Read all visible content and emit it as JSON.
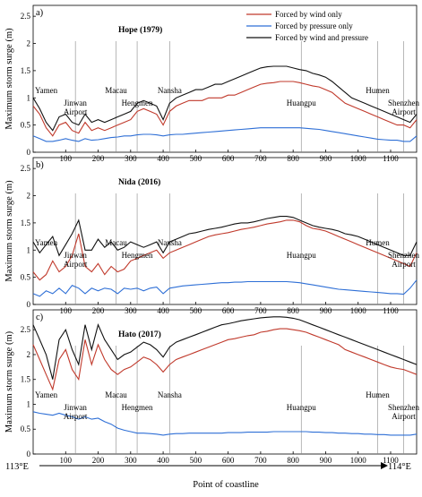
{
  "figure": {
    "ylabel": "Maximum storm surge (m)",
    "xlabel": "Point of coastline",
    "x_start_label": "113°E",
    "x_end_label": "114°E",
    "legend": [
      {
        "label": "Forced by wind only",
        "color": "#c0392b"
      },
      {
        "label": "Forced by pressure only",
        "color": "#2e6fd6"
      },
      {
        "label": "Forced by wind and pressure",
        "color": "#111111"
      }
    ]
  },
  "chart_data": [
    {
      "type": "line",
      "panel": "a)",
      "title": "Hope (1979)",
      "ylabel": "Maximum storm surge (m)",
      "xlim": [
        0,
        1180
      ],
      "ylim": [
        0,
        2.7
      ],
      "yticks": [
        0,
        0.5,
        1,
        1.5,
        2,
        2.5
      ],
      "xticks": [
        100,
        200,
        300,
        400,
        500,
        600,
        700,
        800,
        900,
        1000,
        1100
      ],
      "x": [
        0,
        20,
        40,
        60,
        80,
        100,
        120,
        140,
        160,
        180,
        200,
        220,
        240,
        260,
        280,
        300,
        320,
        340,
        360,
        380,
        400,
        420,
        440,
        460,
        480,
        500,
        520,
        540,
        560,
        580,
        600,
        620,
        640,
        660,
        680,
        700,
        720,
        740,
        760,
        780,
        800,
        820,
        840,
        860,
        880,
        900,
        920,
        940,
        960,
        980,
        1000,
        1020,
        1040,
        1060,
        1080,
        1100,
        1120,
        1140,
        1160,
        1180
      ],
      "series": [
        {
          "name": "Forced by wind only",
          "color": "#c0392b",
          "values": [
            0.85,
            0.7,
            0.45,
            0.3,
            0.5,
            0.55,
            0.4,
            0.35,
            0.55,
            0.4,
            0.45,
            0.4,
            0.45,
            0.5,
            0.55,
            0.6,
            0.75,
            0.8,
            0.75,
            0.7,
            0.5,
            0.75,
            0.85,
            0.9,
            0.95,
            0.95,
            0.95,
            1.0,
            1.0,
            1.0,
            1.05,
            1.05,
            1.1,
            1.15,
            1.2,
            1.25,
            1.27,
            1.28,
            1.3,
            1.3,
            1.3,
            1.28,
            1.25,
            1.22,
            1.2,
            1.15,
            1.1,
            1.0,
            0.9,
            0.85,
            0.8,
            0.75,
            0.7,
            0.65,
            0.6,
            0.55,
            0.5,
            0.5,
            0.45,
            0.6
          ]
        },
        {
          "name": "Forced by pressure only",
          "color": "#2e6fd6",
          "values": [
            0.3,
            0.25,
            0.2,
            0.2,
            0.22,
            0.25,
            0.22,
            0.2,
            0.25,
            0.22,
            0.23,
            0.25,
            0.27,
            0.28,
            0.3,
            0.3,
            0.32,
            0.33,
            0.33,
            0.32,
            0.3,
            0.32,
            0.33,
            0.33,
            0.34,
            0.35,
            0.36,
            0.37,
            0.38,
            0.39,
            0.4,
            0.41,
            0.42,
            0.43,
            0.44,
            0.45,
            0.45,
            0.45,
            0.45,
            0.45,
            0.45,
            0.45,
            0.44,
            0.43,
            0.42,
            0.4,
            0.38,
            0.36,
            0.34,
            0.32,
            0.3,
            0.28,
            0.26,
            0.24,
            0.23,
            0.22,
            0.22,
            0.2,
            0.2,
            0.3
          ]
        },
        {
          "name": "Forced by wind and pressure",
          "color": "#111111",
          "values": [
            1.0,
            0.8,
            0.55,
            0.4,
            0.65,
            0.7,
            0.55,
            0.5,
            0.7,
            0.55,
            0.6,
            0.55,
            0.6,
            0.65,
            0.7,
            0.75,
            0.9,
            0.95,
            0.9,
            0.85,
            0.6,
            0.9,
            1.0,
            1.05,
            1.1,
            1.15,
            1.15,
            1.2,
            1.25,
            1.25,
            1.3,
            1.35,
            1.4,
            1.45,
            1.5,
            1.55,
            1.57,
            1.58,
            1.58,
            1.58,
            1.55,
            1.52,
            1.5,
            1.45,
            1.42,
            1.38,
            1.3,
            1.2,
            1.1,
            1.0,
            0.95,
            0.9,
            0.85,
            0.8,
            0.75,
            0.7,
            0.65,
            0.6,
            0.55,
            0.7
          ]
        }
      ],
      "annotations": [
        {
          "text": "Yamen",
          "x": 0
        },
        {
          "text": "Jinwan Airport",
          "x": 130
        },
        {
          "text": "Macau",
          "x": 255
        },
        {
          "text": "Hengmen",
          "x": 320
        },
        {
          "text": "Nansha",
          "x": 420
        },
        {
          "text": "Huangpu",
          "x": 825
        },
        {
          "text": "Humen",
          "x": 1060
        },
        {
          "text": "Shenzhen Airport",
          "x": 1140
        }
      ]
    },
    {
      "type": "line",
      "panel": "b)",
      "title": "Nida (2016)",
      "ylabel": "Maximum storm surge (m)",
      "xlim": [
        0,
        1180
      ],
      "ylim": [
        0,
        2.7
      ],
      "yticks": [
        0,
        0.5,
        1,
        1.5,
        2,
        2.5
      ],
      "xticks": [
        100,
        200,
        300,
        400,
        500,
        600,
        700,
        800,
        900,
        1000,
        1100
      ],
      "x": [
        0,
        20,
        40,
        60,
        80,
        100,
        120,
        140,
        160,
        180,
        200,
        220,
        240,
        260,
        280,
        300,
        320,
        340,
        360,
        380,
        400,
        420,
        440,
        460,
        480,
        500,
        520,
        540,
        560,
        580,
        600,
        620,
        640,
        660,
        680,
        700,
        720,
        740,
        760,
        780,
        800,
        820,
        840,
        860,
        880,
        900,
        920,
        940,
        960,
        980,
        1000,
        1020,
        1040,
        1060,
        1080,
        1100,
        1120,
        1140,
        1160,
        1180
      ],
      "series": [
        {
          "name": "Forced by wind only",
          "color": "#c0392b",
          "values": [
            0.6,
            0.45,
            0.55,
            0.8,
            0.6,
            0.7,
            0.9,
            1.3,
            0.7,
            0.6,
            0.75,
            0.55,
            0.7,
            0.6,
            0.65,
            0.8,
            0.85,
            0.9,
            0.95,
            1.0,
            0.85,
            0.95,
            1.0,
            1.05,
            1.1,
            1.15,
            1.2,
            1.25,
            1.28,
            1.3,
            1.32,
            1.35,
            1.38,
            1.4,
            1.42,
            1.45,
            1.48,
            1.5,
            1.52,
            1.55,
            1.55,
            1.52,
            1.45,
            1.4,
            1.38,
            1.35,
            1.3,
            1.25,
            1.2,
            1.15,
            1.1,
            1.05,
            1.0,
            0.95,
            0.9,
            0.85,
            0.8,
            0.75,
            0.7,
            0.95
          ]
        },
        {
          "name": "Forced by pressure only",
          "color": "#2e6fd6",
          "values": [
            0.2,
            0.15,
            0.25,
            0.2,
            0.3,
            0.2,
            0.35,
            0.3,
            0.2,
            0.3,
            0.25,
            0.3,
            0.28,
            0.2,
            0.3,
            0.28,
            0.3,
            0.25,
            0.3,
            0.32,
            0.2,
            0.3,
            0.32,
            0.34,
            0.35,
            0.36,
            0.37,
            0.38,
            0.39,
            0.4,
            0.4,
            0.41,
            0.41,
            0.42,
            0.42,
            0.42,
            0.42,
            0.42,
            0.42,
            0.42,
            0.41,
            0.4,
            0.38,
            0.36,
            0.34,
            0.32,
            0.3,
            0.28,
            0.27,
            0.26,
            0.25,
            0.24,
            0.23,
            0.22,
            0.21,
            0.2,
            0.2,
            0.19,
            0.3,
            0.45
          ]
        },
        {
          "name": "Forced by wind and pressure",
          "color": "#111111",
          "values": [
            1.15,
            0.95,
            1.1,
            1.25,
            0.9,
            1.1,
            1.3,
            1.55,
            1.0,
            1.0,
            1.2,
            1.05,
            1.15,
            1.0,
            1.05,
            1.15,
            1.1,
            1.05,
            1.1,
            1.15,
            0.95,
            1.15,
            1.2,
            1.25,
            1.3,
            1.32,
            1.35,
            1.38,
            1.4,
            1.42,
            1.45,
            1.48,
            1.5,
            1.5,
            1.52,
            1.55,
            1.58,
            1.6,
            1.62,
            1.62,
            1.6,
            1.55,
            1.5,
            1.45,
            1.42,
            1.4,
            1.38,
            1.35,
            1.3,
            1.28,
            1.25,
            1.2,
            1.15,
            1.1,
            1.05,
            1.0,
            0.95,
            0.9,
            0.9,
            1.15
          ]
        }
      ],
      "annotations": [
        {
          "text": "Yamen",
          "x": 0
        },
        {
          "text": "Jinwan Airport",
          "x": 130
        },
        {
          "text": "Macau",
          "x": 255
        },
        {
          "text": "Hengmen",
          "x": 320
        },
        {
          "text": "Nansha",
          "x": 420
        },
        {
          "text": "Huangpu",
          "x": 825
        },
        {
          "text": "Humen",
          "x": 1060
        },
        {
          "text": "Shenzhen Airport",
          "x": 1140
        }
      ]
    },
    {
      "type": "line",
      "panel": "c)",
      "title": "Hato (2017)",
      "ylabel": "Maximum storm surge (m)",
      "xlim": [
        0,
        1180
      ],
      "ylim": [
        0,
        2.9
      ],
      "yticks": [
        0,
        0.5,
        1,
        1.5,
        2,
        2.5
      ],
      "xticks": [
        100,
        200,
        300,
        400,
        500,
        600,
        700,
        800,
        900,
        1000,
        1100
      ],
      "x": [
        0,
        20,
        40,
        60,
        80,
        100,
        120,
        140,
        160,
        180,
        200,
        220,
        240,
        260,
        280,
        300,
        320,
        340,
        360,
        380,
        400,
        420,
        440,
        460,
        480,
        500,
        520,
        540,
        560,
        580,
        600,
        620,
        640,
        660,
        680,
        700,
        720,
        740,
        760,
        780,
        800,
        820,
        840,
        860,
        880,
        900,
        920,
        940,
        960,
        980,
        1000,
        1020,
        1040,
        1060,
        1080,
        1100,
        1120,
        1140,
        1160,
        1180
      ],
      "series": [
        {
          "name": "Forced by wind only",
          "color": "#c0392b",
          "values": [
            2.2,
            1.9,
            1.6,
            1.3,
            1.9,
            2.1,
            1.7,
            1.5,
            2.3,
            1.8,
            2.2,
            1.9,
            1.7,
            1.6,
            1.7,
            1.75,
            1.85,
            1.95,
            1.9,
            1.8,
            1.65,
            1.8,
            1.9,
            1.95,
            2.0,
            2.05,
            2.1,
            2.15,
            2.2,
            2.25,
            2.3,
            2.32,
            2.35,
            2.38,
            2.4,
            2.45,
            2.47,
            2.5,
            2.52,
            2.52,
            2.5,
            2.48,
            2.45,
            2.4,
            2.35,
            2.3,
            2.25,
            2.2,
            2.1,
            2.05,
            2.0,
            1.95,
            1.9,
            1.85,
            1.8,
            1.75,
            1.72,
            1.7,
            1.65,
            1.6
          ]
        },
        {
          "name": "Forced by pressure only",
          "color": "#2e6fd6",
          "values": [
            0.85,
            0.82,
            0.8,
            0.78,
            0.82,
            0.78,
            0.75,
            0.7,
            0.75,
            0.7,
            0.72,
            0.65,
            0.6,
            0.52,
            0.48,
            0.45,
            0.42,
            0.42,
            0.41,
            0.4,
            0.38,
            0.4,
            0.41,
            0.41,
            0.42,
            0.42,
            0.42,
            0.42,
            0.42,
            0.42,
            0.43,
            0.43,
            0.43,
            0.44,
            0.44,
            0.44,
            0.44,
            0.45,
            0.45,
            0.45,
            0.45,
            0.45,
            0.45,
            0.44,
            0.44,
            0.43,
            0.43,
            0.42,
            0.42,
            0.41,
            0.41,
            0.4,
            0.4,
            0.39,
            0.39,
            0.38,
            0.38,
            0.38,
            0.38,
            0.4
          ]
        },
        {
          "name": "Forced by wind and pressure",
          "color": "#111111",
          "values": [
            2.6,
            2.3,
            2.0,
            1.5,
            2.3,
            2.5,
            2.1,
            1.8,
            2.6,
            2.1,
            2.6,
            2.3,
            2.1,
            1.9,
            2.0,
            2.05,
            2.15,
            2.25,
            2.2,
            2.1,
            1.95,
            2.15,
            2.25,
            2.3,
            2.35,
            2.4,
            2.45,
            2.5,
            2.55,
            2.6,
            2.62,
            2.65,
            2.68,
            2.7,
            2.72,
            2.74,
            2.75,
            2.76,
            2.76,
            2.75,
            2.73,
            2.7,
            2.65,
            2.6,
            2.55,
            2.5,
            2.45,
            2.4,
            2.35,
            2.3,
            2.25,
            2.2,
            2.15,
            2.1,
            2.05,
            2.0,
            1.95,
            1.9,
            1.85,
            1.8
          ]
        }
      ],
      "annotations": [
        {
          "text": "Yamen",
          "x": 0
        },
        {
          "text": "Jinwan Airport",
          "x": 130
        },
        {
          "text": "Macau",
          "x": 255
        },
        {
          "text": "Hengmen",
          "x": 320
        },
        {
          "text": "Nansha",
          "x": 420
        },
        {
          "text": "Huangpu",
          "x": 825
        },
        {
          "text": "Humen",
          "x": 1060
        },
        {
          "text": "Shenzhen Airport",
          "x": 1140
        }
      ]
    }
  ]
}
